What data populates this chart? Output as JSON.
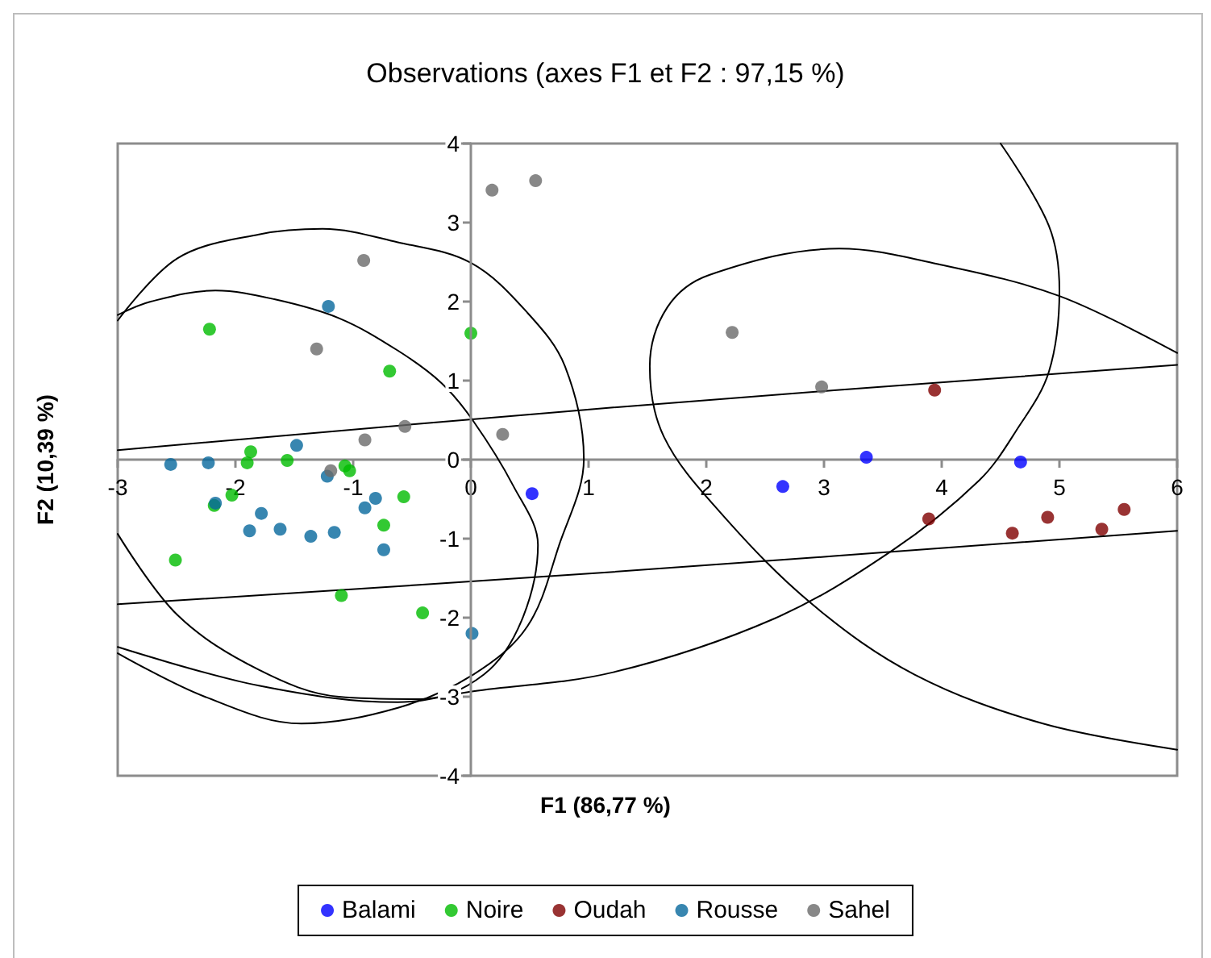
{
  "chart_data": {
    "type": "scatter",
    "title": "Observations (axes F1 et F2 : 97,15 %)",
    "xlabel": "F1 (86,77 %)",
    "ylabel": "F2 (10,39 %)",
    "xlim": [
      -3,
      6
    ],
    "ylim": [
      -4,
      4
    ],
    "xticks": [
      -3,
      -2,
      -1,
      0,
      1,
      2,
      3,
      4,
      5,
      6
    ],
    "yticks": [
      -4,
      -3,
      -2,
      -1,
      0,
      1,
      2,
      3,
      4
    ],
    "grid": false,
    "legend": "bottom",
    "marker": "circle",
    "series": [
      {
        "name": "Balami",
        "color": "#0000ff",
        "x": [
          3.36,
          4.67,
          2.65,
          0.52
        ],
        "values": [
          0.03,
          -0.03,
          -0.34,
          -0.43
        ]
      },
      {
        "name": "Noire",
        "color": "#00bb00",
        "x": [
          -2.22,
          -0.69,
          0.0,
          -1.87,
          -1.9,
          -1.56,
          -1.07,
          -1.03,
          -2.03,
          -2.18,
          -0.57,
          -0.74,
          -2.51,
          -1.1,
          -0.41
        ],
        "values": [
          1.65,
          1.12,
          1.6,
          0.1,
          -0.04,
          -0.01,
          -0.08,
          -0.14,
          -0.45,
          -0.58,
          -0.47,
          -0.83,
          -1.27,
          -1.72,
          -1.94
        ]
      },
      {
        "name": "Oudah",
        "color": "#7f0000",
        "x": [
          3.94,
          3.89,
          4.6,
          4.9,
          5.36,
          5.55
        ],
        "values": [
          0.88,
          -0.75,
          -0.93,
          -0.73,
          -0.88,
          -0.63
        ]
      },
      {
        "name": "Rousse",
        "color": "#06689c",
        "x": [
          -1.21,
          -1.48,
          -2.55,
          -2.23,
          -1.22,
          -2.17,
          -1.78,
          -1.88,
          -1.62,
          -1.36,
          -1.16,
          -0.9,
          -0.81,
          -0.74,
          0.01
        ],
        "values": [
          1.94,
          0.18,
          -0.06,
          -0.04,
          -0.21,
          -0.55,
          -0.68,
          -0.9,
          -0.88,
          -0.97,
          -0.92,
          -0.61,
          -0.49,
          -1.14,
          -2.2
        ]
      },
      {
        "name": "Sahel",
        "color": "#6a6a6a",
        "x": [
          0.18,
          0.55,
          -0.91,
          -1.31,
          -0.56,
          -0.9,
          0.27,
          -1.19,
          2.22,
          2.98
        ],
        "values": [
          3.41,
          3.53,
          2.52,
          1.4,
          0.42,
          0.25,
          0.32,
          -0.14,
          1.61,
          0.92
        ]
      },
      {
        "type": "line",
        "color": "#000000",
        "marker": "none",
        "x": [
          -3.0,
          -2.49,
          -1.8,
          -1.26,
          -0.62,
          0.0,
          0.48,
          0.8,
          0.96,
          0.75,
          0.48,
          0.02,
          -0.62,
          -1.44,
          -2.26,
          -3.0
        ],
        "values": [
          1.76,
          2.55,
          2.85,
          2.92,
          2.75,
          2.49,
          1.86,
          1.18,
          0.01,
          -1.08,
          -2.11,
          -2.72,
          -3.14,
          -3.34,
          -3.0,
          -2.45
        ]
      },
      {
        "type": "line",
        "color": "#000000",
        "marker": "none",
        "x": [
          -3.0,
          -2.72,
          -2.17,
          -1.67,
          -1.12,
          -0.62,
          -0.25,
          0.02,
          0.36,
          0.57,
          0.43,
          0.11,
          -0.43,
          -1.12,
          -1.8,
          -2.49,
          -3.0
        ],
        "values": [
          1.83,
          2.0,
          2.14,
          2.03,
          1.79,
          1.38,
          0.97,
          0.49,
          -0.33,
          -1.08,
          -2.04,
          -2.72,
          -3.03,
          -3.0,
          -2.66,
          -1.97,
          -0.94
        ]
      },
      {
        "type": "line",
        "color": "#000000",
        "marker": "none",
        "x": [
          -3.0,
          -1.8,
          -0.62,
          0.02,
          1.21,
          2.58,
          3.58,
          4.32,
          4.63,
          4.91,
          5.0,
          4.91,
          4.5
        ],
        "values": [
          -2.37,
          -2.86,
          -3.07,
          -2.93,
          -2.69,
          -2.01,
          -1.15,
          -0.26,
          0.36,
          1.11,
          2.14,
          2.96,
          4.0
        ]
      },
      {
        "type": "line",
        "color": "#000000",
        "marker": "none",
        "x": [
          6.0,
          5.0,
          3.95,
          3.13,
          2.03,
          1.67,
          1.52,
          1.64,
          2.12,
          2.9,
          3.77,
          4.86,
          6.0
        ],
        "values": [
          1.35,
          2.07,
          2.48,
          2.67,
          2.34,
          1.93,
          1.18,
          0.29,
          -0.67,
          -1.83,
          -2.72,
          -3.34,
          -3.67
        ]
      },
      {
        "type": "line",
        "color": "#000000",
        "marker": "none",
        "x": [
          -3.0,
          1.21,
          6.0
        ],
        "values": [
          0.12,
          0.66,
          1.2
        ]
      },
      {
        "type": "line",
        "color": "#000000",
        "marker": "none",
        "x": [
          6.0,
          1.21,
          -3.0
        ],
        "values": [
          -0.9,
          -1.42,
          -1.83
        ]
      }
    ]
  }
}
